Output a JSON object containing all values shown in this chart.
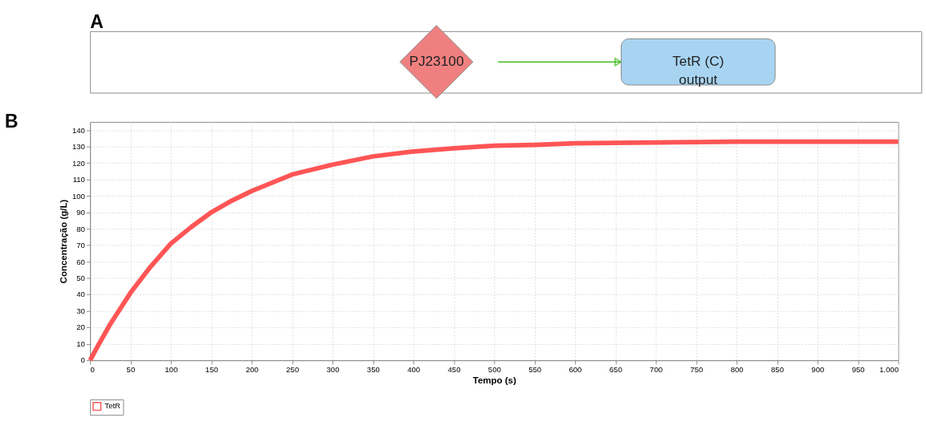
{
  "chart_data": [
    {
      "type": "other",
      "title": "A",
      "annotations": [
        "PJ23100",
        "TetR (C)\noutput"
      ]
    },
    {
      "type": "line",
      "title": "B",
      "xlabel": "Tempo (s)",
      "ylabel": "Concentração (g/L)",
      "x": [
        0,
        10,
        25,
        50,
        75,
        100,
        125,
        150,
        175,
        200,
        250,
        300,
        350,
        400,
        450,
        500,
        550,
        600,
        700,
        800,
        900,
        1000
      ],
      "series": [
        {
          "name": "TetR",
          "color": "#ff5555",
          "values": [
            0,
            9,
            22,
            41,
            57,
            71,
            81,
            90,
            97,
            103,
            113,
            119,
            124,
            127,
            129,
            130.5,
            131,
            132,
            132.5,
            133,
            133,
            133
          ]
        }
      ],
      "xlim": [
        0,
        1000
      ],
      "ylim": [
        0,
        145
      ],
      "xticks": [
        0,
        50,
        100,
        150,
        200,
        250,
        300,
        350,
        400,
        450,
        500,
        550,
        600,
        650,
        700,
        750,
        800,
        850,
        900,
        950,
        {
          "value": 1000,
          "label": "1.000"
        }
      ],
      "yticks": [
        0,
        10,
        20,
        30,
        40,
        50,
        60,
        70,
        80,
        90,
        100,
        110,
        120,
        130,
        140
      ],
      "grid": true,
      "legend": "bottom",
      "marker": "none",
      "line_style": "solid"
    }
  ]
}
